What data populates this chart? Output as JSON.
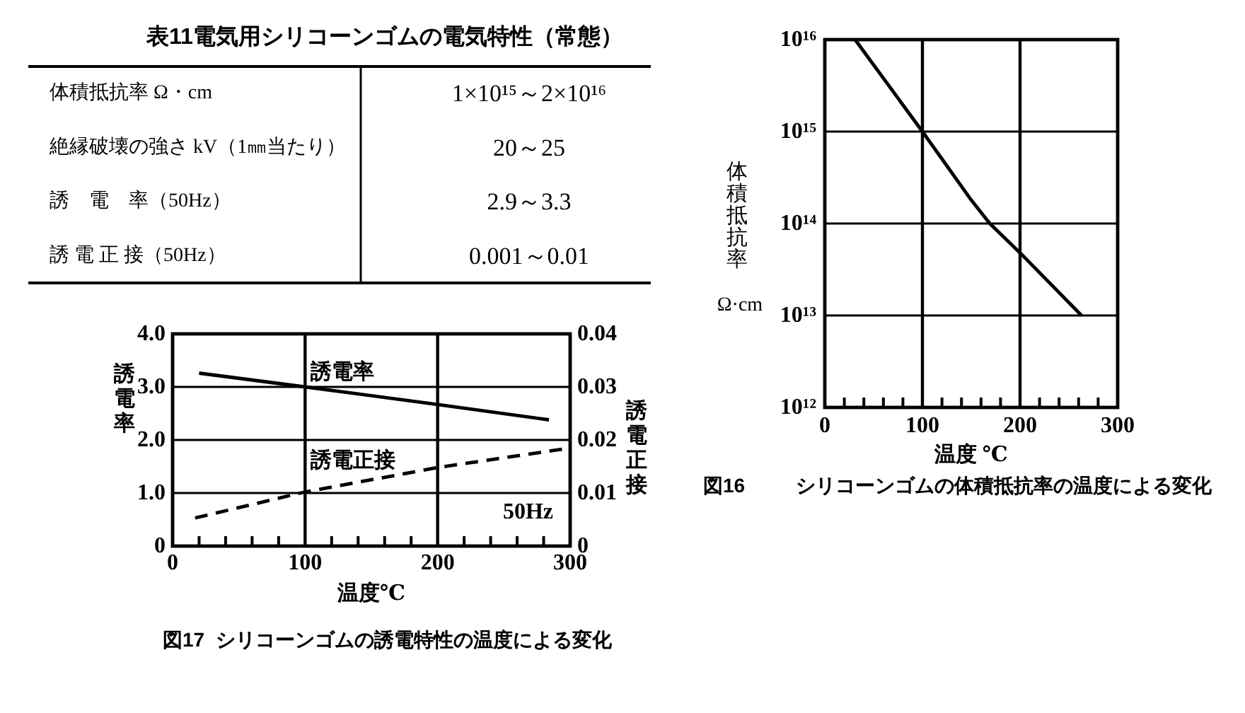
{
  "chart_data": [
    {
      "type": "other",
      "title": "表11電気用シリコーンゴムの電気特性（常態）",
      "annotations": [
        "体積抵抗率 Ω・cm",
        "1×10¹⁵～2×10¹⁶",
        "絶縁破壊の強さ kV（1㎜当たり）",
        "20～25",
        "誘　電　率（50Hz）",
        "2.9～3.3",
        "誘 電 正 接（50Hz）",
        "0.001～0.01"
      ]
    },
    {
      "type": "line",
      "title": "図16 シリコーンゴムの体積抵抗率の温度による変化",
      "xlabel": "温度 ℃",
      "ylabel": "体積抵抗率 Ω·cm",
      "x": [
        31,
        100,
        150,
        169,
        200,
        263
      ],
      "series": [
        {
          "color": "#000000",
          "values": [
            1e+16,
            1000000000000000.0,
            180000000000000.0,
            100000000000000.0,
            48000000000000.0,
            10000000000000.0
          ]
        }
      ],
      "xlim": [
        0,
        300
      ],
      "xticks": [
        0,
        {
          "value": 20,
          "label": null
        },
        {
          "value": 40,
          "label": null
        },
        {
          "value": 60,
          "label": null
        },
        {
          "value": 80,
          "label": null
        },
        100,
        {
          "value": 120,
          "label": null
        },
        {
          "value": 140,
          "label": null
        },
        {
          "value": 160,
          "label": null
        },
        {
          "value": 180,
          "label": null
        },
        200,
        {
          "value": 220,
          "label": null
        },
        {
          "value": 240,
          "label": null
        },
        {
          "value": 260,
          "label": null
        },
        {
          "value": 280,
          "label": null
        },
        300
      ],
      "ylim": [
        1000000000000.0,
        1e+16
      ],
      "yticks": [
        {
          "value": 1000000000000.0,
          "label": "10¹²"
        },
        {
          "value": 10000000000000.0,
          "label": "10¹³"
        },
        {
          "value": 100000000000000.0,
          "label": "10¹⁴"
        },
        {
          "value": 1000000000000000.0,
          "label": "10¹⁵"
        },
        {
          "value": 1e+16,
          "label": "10¹⁶"
        }
      ],
      "log": true,
      "grid": true,
      "marker": "none",
      "line_style": "solid"
    },
    {
      "type": "line",
      "title": "図17 シリコーンゴムの誘電特性の温度による変化",
      "xlabel": "温度℃",
      "ylabel": "誘電率",
      "y2label": "誘電正接",
      "series": [
        {
          "name": "誘電率",
          "color": "#000000",
          "x": [
            20,
            100,
            200,
            284
          ],
          "values": [
            3.26,
            3.0,
            2.67,
            2.38
          ]
        },
        {
          "name": "誘電正接",
          "color": "#000000",
          "axis": "y2",
          "line_style": "dashed",
          "x": [
            17,
            100,
            200,
            295
          ],
          "values": [
            0.0053,
            0.0102,
            0.0148,
            0.0183
          ]
        }
      ],
      "xlim": [
        0,
        300
      ],
      "xticks": [
        0,
        {
          "value": 20,
          "label": null
        },
        {
          "value": 40,
          "label": null
        },
        {
          "value": 60,
          "label": null
        },
        {
          "value": 80,
          "label": null
        },
        100,
        {
          "value": 120,
          "label": null
        },
        {
          "value": 140,
          "label": null
        },
        {
          "value": 160,
          "label": null
        },
        {
          "value": 180,
          "label": null
        },
        200,
        {
          "value": 220,
          "label": null
        },
        {
          "value": 240,
          "label": null
        },
        {
          "value": 260,
          "label": null
        },
        {
          "value": 280,
          "label": null
        },
        300
      ],
      "ylim": [
        0,
        4
      ],
      "yticks": [
        0,
        {
          "value": 1,
          "label": "1.0"
        },
        {
          "value": 2,
          "label": "2.0"
        },
        {
          "value": 3,
          "label": "3.0"
        },
        {
          "value": 4,
          "label": "4.0"
        }
      ],
      "y2lim": [
        0,
        0.04
      ],
      "y2ticks": [
        0,
        0.01,
        0.02,
        0.03,
        0.04
      ],
      "grid": true,
      "marker": "none",
      "line_style": "solid",
      "annotations": [
        "50Hz"
      ]
    }
  ]
}
